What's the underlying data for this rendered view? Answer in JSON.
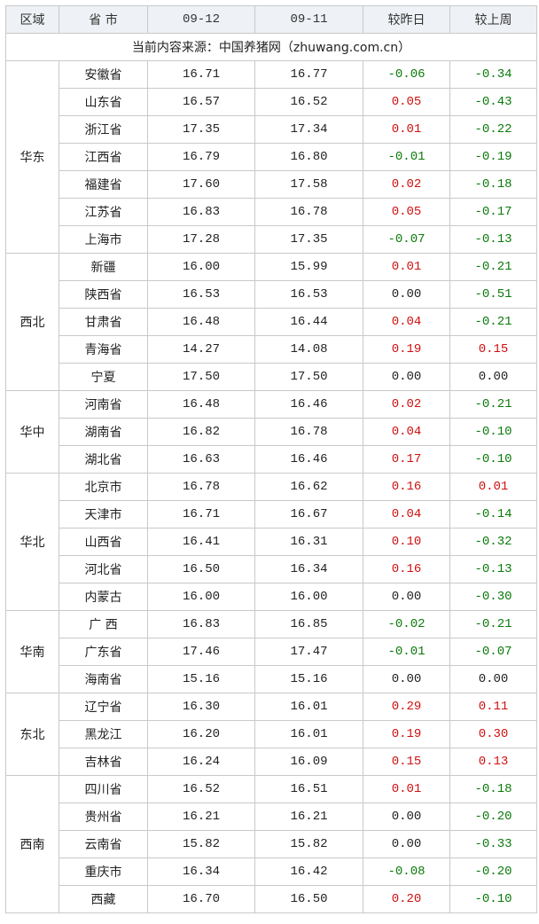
{
  "table": {
    "header": [
      "区域",
      "省 市",
      "09-12",
      "09-11",
      "较昨日",
      "较上周"
    ],
    "source": "当前内容来源：中国养猪网（zhuwang.com.cn）",
    "groups": [
      {
        "region": "华东",
        "rows": [
          [
            "安徽省",
            "16.71",
            "16.77",
            "-0.06",
            "-0.34"
          ],
          [
            "山东省",
            "16.57",
            "16.52",
            "0.05",
            "-0.43"
          ],
          [
            "浙江省",
            "17.35",
            "17.34",
            "0.01",
            "-0.22"
          ],
          [
            "江西省",
            "16.79",
            "16.80",
            "-0.01",
            "-0.19"
          ],
          [
            "福建省",
            "17.60",
            "17.58",
            "0.02",
            "-0.18"
          ],
          [
            "江苏省",
            "16.83",
            "16.78",
            "0.05",
            "-0.17"
          ],
          [
            "上海市",
            "17.28",
            "17.35",
            "-0.07",
            "-0.13"
          ]
        ]
      },
      {
        "region": "西北",
        "rows": [
          [
            "新疆",
            "16.00",
            "15.99",
            "0.01",
            "-0.21"
          ],
          [
            "陕西省",
            "16.53",
            "16.53",
            "0.00",
            "-0.51"
          ],
          [
            "甘肃省",
            "16.48",
            "16.44",
            "0.04",
            "-0.21"
          ],
          [
            "青海省",
            "14.27",
            "14.08",
            "0.19",
            "0.15"
          ],
          [
            "宁夏",
            "17.50",
            "17.50",
            "0.00",
            "0.00"
          ]
        ]
      },
      {
        "region": "华中",
        "rows": [
          [
            "河南省",
            "16.48",
            "16.46",
            "0.02",
            "-0.21"
          ],
          [
            "湖南省",
            "16.82",
            "16.78",
            "0.04",
            "-0.10"
          ],
          [
            "湖北省",
            "16.63",
            "16.46",
            "0.17",
            "-0.10"
          ]
        ]
      },
      {
        "region": "华北",
        "rows": [
          [
            "北京市",
            "16.78",
            "16.62",
            "0.16",
            "0.01"
          ],
          [
            "天津市",
            "16.71",
            "16.67",
            "0.04",
            "-0.14"
          ],
          [
            "山西省",
            "16.41",
            "16.31",
            "0.10",
            "-0.32"
          ],
          [
            "河北省",
            "16.50",
            "16.34",
            "0.16",
            "-0.13"
          ],
          [
            "内蒙古",
            "16.00",
            "16.00",
            "0.00",
            "-0.30"
          ]
        ]
      },
      {
        "region": "华南",
        "rows": [
          [
            "广 西",
            "16.83",
            "16.85",
            "-0.02",
            "-0.21"
          ],
          [
            "广东省",
            "17.46",
            "17.47",
            "-0.01",
            "-0.07"
          ],
          [
            "海南省",
            "15.16",
            "15.16",
            "0.00",
            "0.00"
          ]
        ]
      },
      {
        "region": "东北",
        "rows": [
          [
            "辽宁省",
            "16.30",
            "16.01",
            "0.29",
            "0.11"
          ],
          [
            "黑龙江",
            "16.20",
            "16.01",
            "0.19",
            "0.30"
          ],
          [
            "吉林省",
            "16.24",
            "16.09",
            "0.15",
            "0.13"
          ]
        ]
      },
      {
        "region": "西南",
        "rows": [
          [
            "四川省",
            "16.52",
            "16.51",
            "0.01",
            "-0.18"
          ],
          [
            "贵州省",
            "16.21",
            "16.21",
            "0.00",
            "-0.20"
          ],
          [
            "云南省",
            "15.82",
            "15.82",
            "0.00",
            "-0.33"
          ],
          [
            "重庆市",
            "16.34",
            "16.42",
            "-0.08",
            "-0.20"
          ],
          [
            "西藏",
            "16.70",
            "16.50",
            "0.20",
            "-0.10"
          ]
        ]
      }
    ]
  }
}
